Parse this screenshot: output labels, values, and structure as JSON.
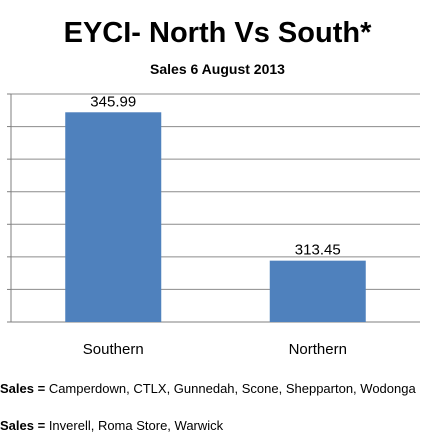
{
  "chart_data": {
    "type": "bar",
    "title": "EYCI- North Vs South*",
    "subtitle": "Sales 6 August 2013",
    "categories": [
      "Southern",
      "Northern"
    ],
    "values": [
      345.99,
      313.45
    ],
    "value_labels": [
      "345.99",
      "313.45"
    ],
    "ylim": [
      300,
      350
    ],
    "bar_color": "#4f81bd",
    "grid": true,
    "legend": "none"
  },
  "notes": [
    {
      "label": "Sales =",
      "text": "Camperdown, CTLX, Gunnedah, Scone, Shepparton, Wodonga"
    },
    {
      "label": "Sales =",
      "text": "Inverell, Roma Store, Warwick"
    }
  ]
}
